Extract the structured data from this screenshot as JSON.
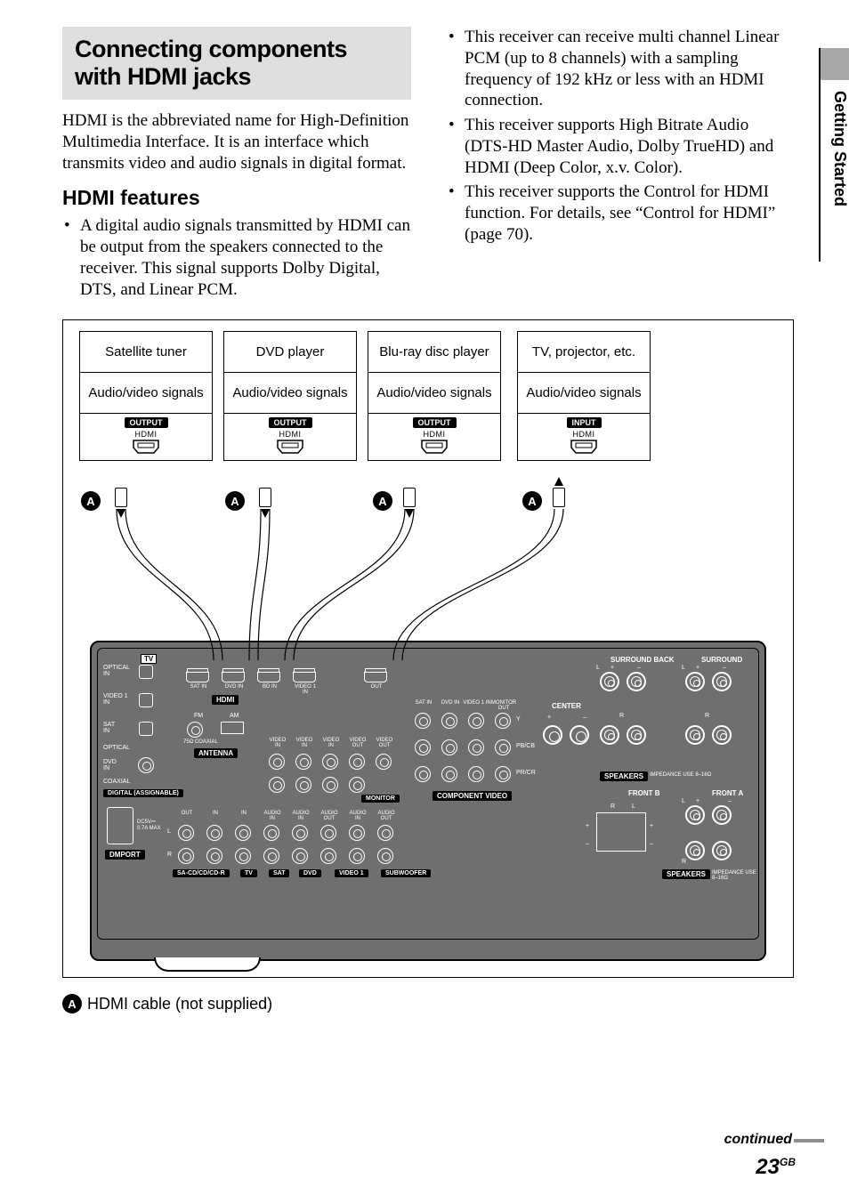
{
  "sideTab": {
    "label": "Getting Started"
  },
  "heading": "Connecting components with HDMI jacks",
  "intro": "HDMI is the abbreviated name for High-Definition Multimedia Interface. It is an interface which transmits video and audio signals in digital format.",
  "featuresHeading": "HDMI features",
  "features_left": [
    "A digital audio signals transmitted by HDMI can be output from the speakers connected to the receiver. This signal supports Dolby Digital, DTS, and Linear PCM."
  ],
  "features_right": [
    "This receiver can receive multi channel Linear PCM (up to 8 channels) with a sampling frequency of 192 kHz or less with an HDMI connection.",
    "This receiver supports High Bitrate Audio (DTS-HD Master Audio, Dolby TrueHD) and HDMI (Deep Color, x.v. Color).",
    "This receiver supports the Control for HDMI function. For details, see “Control for HDMI” (page 70)."
  ],
  "devices": [
    {
      "name": "Satellite tuner",
      "sig": "Audio/video signals",
      "dir": "OUTPUT",
      "port": "HDMI",
      "arrow": "down"
    },
    {
      "name": "DVD player",
      "sig": "Audio/video signals",
      "dir": "OUTPUT",
      "port": "HDMI",
      "arrow": "down"
    },
    {
      "name": "Blu-ray disc player",
      "sig": "Audio/video signals",
      "dir": "OUTPUT",
      "port": "HDMI",
      "arrow": "down"
    },
    {
      "name": "TV, projector, etc.",
      "sig": "Audio/video signals",
      "dir": "INPUT",
      "port": "HDMI",
      "arrow": "up"
    }
  ],
  "cableMarker": "A",
  "legend": "HDMI cable (not supplied)",
  "continued": "continued",
  "pageNumber": "23",
  "pageSuffix": "GB",
  "panel": {
    "hdmi_section_label": "HDMI",
    "hdmi_ports": [
      "SAT IN",
      "DVD IN",
      "BD IN",
      "VIDEO 1 IN",
      "OUT"
    ],
    "digital_label": "DIGITAL (ASSIGNABLE)",
    "digital_inputs": [
      {
        "t": "OPTICAL",
        "l": "TV",
        "sub": "IN"
      },
      {
        "t": "",
        "l": "VIDEO 1",
        "sub": "IN"
      },
      {
        "t": "",
        "l": "SAT",
        "sub": "IN"
      },
      {
        "t": "OPTICAL",
        "l": "",
        "sub": ""
      },
      {
        "t": "COAXIAL",
        "l": "DVD",
        "sub": "IN"
      }
    ],
    "antenna_label": "ANTENNA",
    "antenna_items": [
      "FM",
      "AM",
      "75Ω COAXIAL"
    ],
    "dmport_label": "DMPORT",
    "dmport_sub": "DC5V⎓ 0.7A  MAX",
    "monitor_label": "MONITOR",
    "component_label": "COMPONENT VIDEO",
    "component_cols": [
      "SAT IN",
      "DVD IN",
      "VIDEO 1 IN",
      "MONITOR OUT"
    ],
    "component_rows": [
      "Y",
      "PB/CB",
      "PR/CR"
    ],
    "video_row_top": [
      "VIDEO IN",
      "VIDEO IN",
      "VIDEO IN",
      "VIDEO OUT",
      "VIDEO OUT"
    ],
    "audio_row": [
      "OUT",
      "IN",
      "IN",
      "AUDIO IN",
      "AUDIO IN",
      "AUDIO OUT",
      "AUDIO IN",
      "AUDIO OUT"
    ],
    "audio_channels": [
      "L",
      "R"
    ],
    "bottom_sources": [
      "SA-CD/CD/CD-R",
      "TV",
      "SAT",
      "DVD",
      "VIDEO 1",
      "SUBWOOFER"
    ],
    "speakers_label": "SPEAKERS",
    "speakers_imp": "IMPEDANCE USE 8–16Ω",
    "spk_groups_top": [
      "SURROUND BACK",
      "SURROUND"
    ],
    "spk_groups_bot": [
      "FRONT B",
      "FRONT A"
    ],
    "center_label": "CENTER",
    "lr": [
      "L",
      "R"
    ],
    "pm": [
      "+",
      "–"
    ]
  },
  "colors": {
    "title_bg": "#dedede",
    "panel_bg": "#6f6f6f",
    "sidebar_grey": "#a9a9a9"
  }
}
